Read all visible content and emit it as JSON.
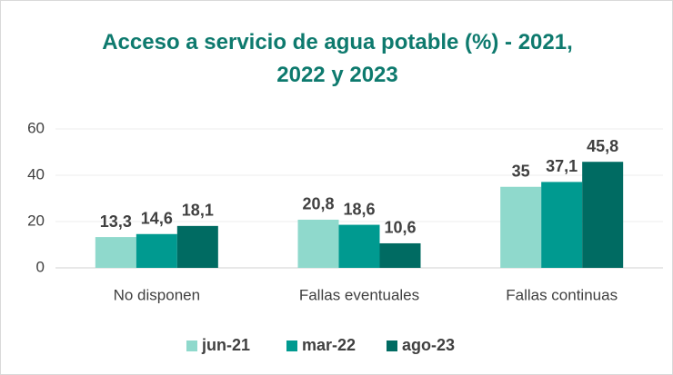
{
  "chart_data": {
    "type": "bar",
    "title": "Acceso a servicio de agua potable (%) - 2021, 2022 y 2023",
    "categories": [
      "No disponen",
      "Fallas eventuales",
      "Fallas continuas"
    ],
    "series": [
      {
        "name": "jun-21",
        "color": "#8fd9cc",
        "values": [
          13.3,
          20.8,
          35
        ],
        "value_labels": [
          "13,3",
          "20,8",
          "35"
        ]
      },
      {
        "name": "mar-22",
        "color": "#009a90",
        "values": [
          14.6,
          18.6,
          37.1
        ],
        "value_labels": [
          "14,6",
          "18,6",
          "37,1"
        ]
      },
      {
        "name": "ago-23",
        "color": "#006b62",
        "values": [
          18.1,
          10.6,
          45.8
        ],
        "value_labels": [
          "18,1",
          "10,6",
          "45,8"
        ]
      }
    ],
    "ylim": [
      0,
      60
    ],
    "yticks": [
      0,
      20,
      40,
      60
    ],
    "grid": true,
    "legend": "bottom"
  }
}
